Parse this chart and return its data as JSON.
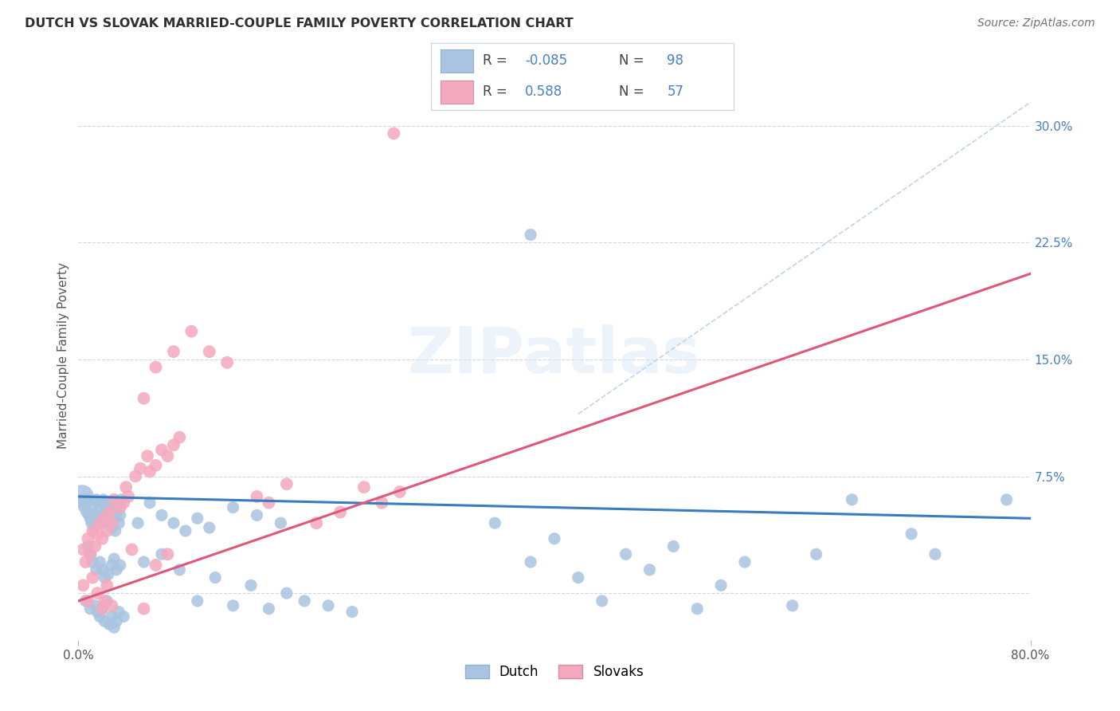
{
  "title": "DUTCH VS SLOVAK MARRIED-COUPLE FAMILY POVERTY CORRELATION CHART",
  "source": "Source: ZipAtlas.com",
  "ylabel": "Married-Couple Family Poverty",
  "xlabel": "",
  "xlim": [
    0.0,
    0.8
  ],
  "ylim": [
    -0.03,
    0.335
  ],
  "yticks": [
    0.075,
    0.15,
    0.225,
    0.3
  ],
  "ytick_labels": [
    "7.5%",
    "15.0%",
    "22.5%",
    "30.0%"
  ],
  "xticks": [
    0.0,
    0.8
  ],
  "xtick_labels": [
    "0.0%",
    "80.0%"
  ],
  "dutch_R": -0.085,
  "dutch_N": 98,
  "slovak_R": 0.588,
  "slovak_N": 57,
  "dutch_color": "#a8c4e0",
  "slovak_color": "#f4a8be",
  "dutch_line_color": "#3a7cc0",
  "slovak_line_color": "#e05878",
  "ref_line_color": "#c0d4e8",
  "background_color": "#ffffff",
  "text_color_blue": "#4a7fc0",
  "watermark": "ZIPatlas",
  "dutch_line_start_y": 0.062,
  "dutch_line_end_y": 0.048,
  "slovak_line_start_y": -0.005,
  "slovak_line_end_y": 0.205,
  "ref_line_start_x": 0.42,
  "ref_line_start_y": 0.115,
  "ref_line_end_x": 0.8,
  "ref_line_end_y": 0.315
}
